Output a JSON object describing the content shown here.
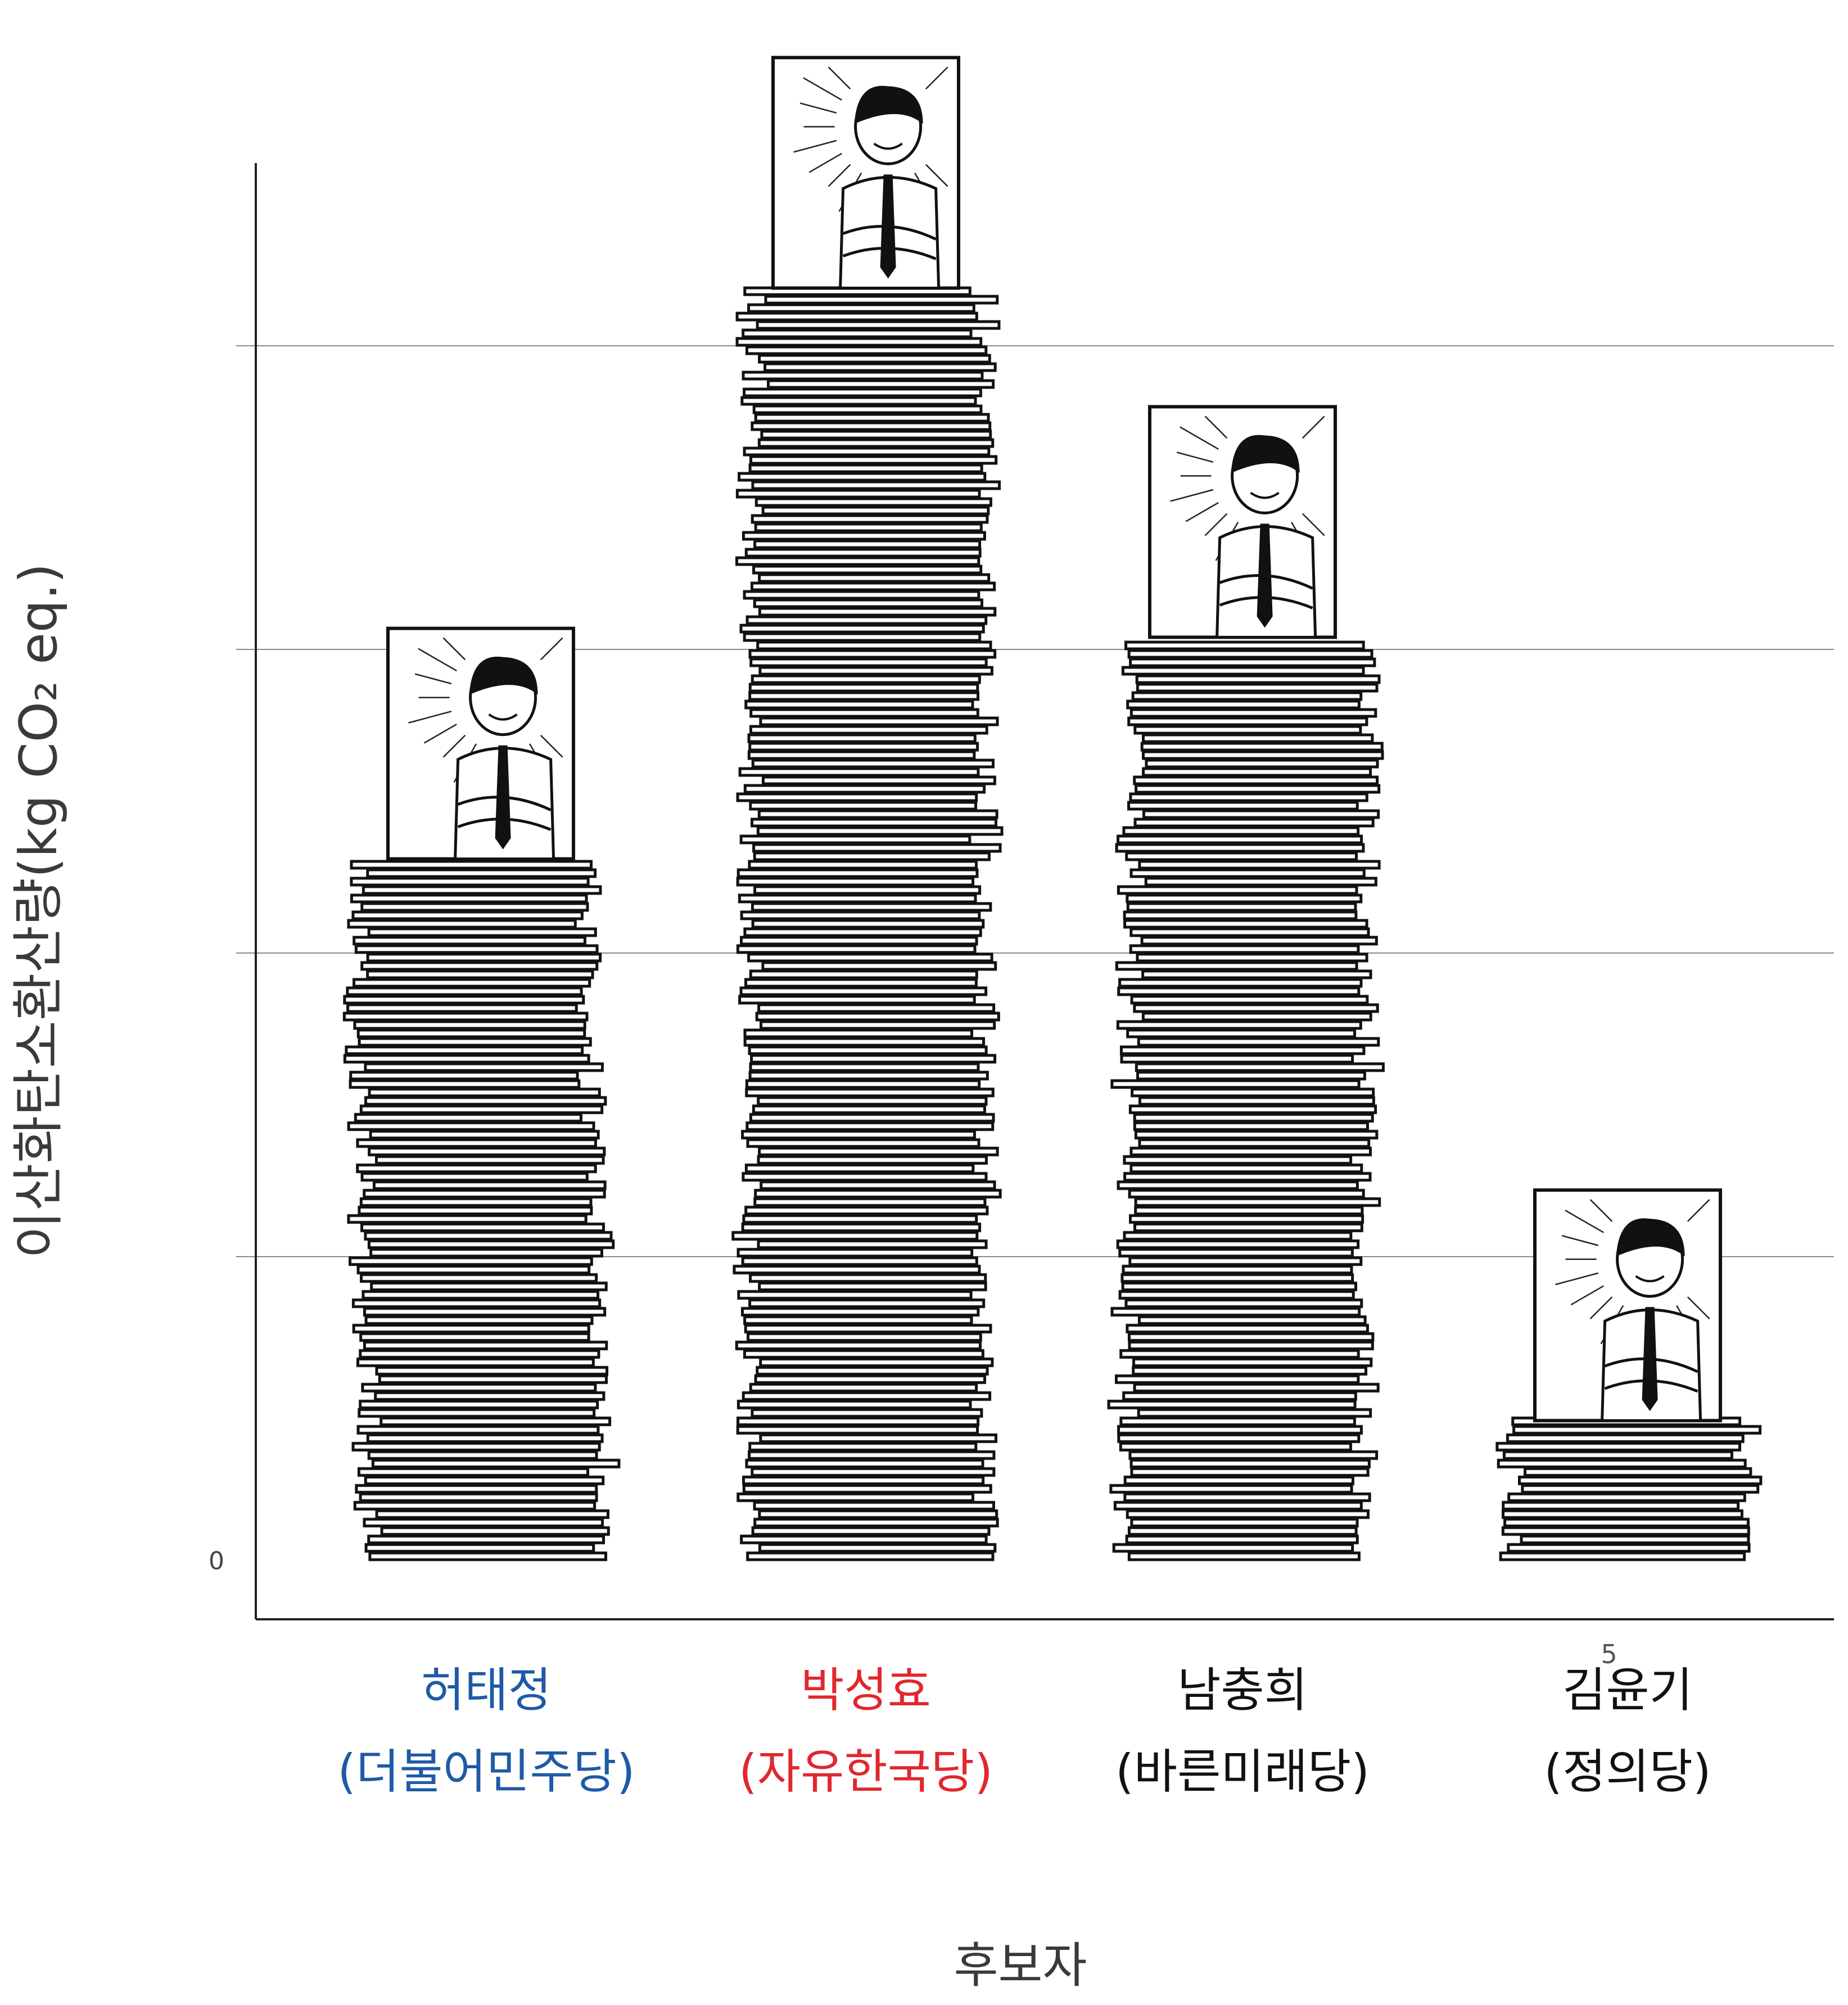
{
  "chart_data": {
    "type": "bar",
    "title": "",
    "xlabel": "후보자",
    "ylabel": "이산화탄소환산량(kg CO₂ eq.)",
    "categories": [
      {
        "name": "허태정",
        "party": "(더불어민주당)",
        "color": "#1f5aa6"
      },
      {
        "name": "박성효",
        "party": "(자유한국당)",
        "color": "#e0282e"
      },
      {
        "name": "남충희",
        "party": "(바른미래당)",
        "color": "#111111"
      },
      {
        "name": "김윤기",
        "party": "(정의당)",
        "color": "#111111"
      }
    ],
    "values": [
      23.1,
      41.9,
      30.4,
      4.6
    ],
    "ylim": [
      0,
      50
    ],
    "yticks": [
      0,
      10,
      20,
      30,
      40
    ],
    "ytick_labels": [
      "0",
      "",
      "",
      "",
      ""
    ],
    "stray_label": "5",
    "grid": true,
    "bar_style": "stack-of-paper-with-candidate-portrait"
  }
}
